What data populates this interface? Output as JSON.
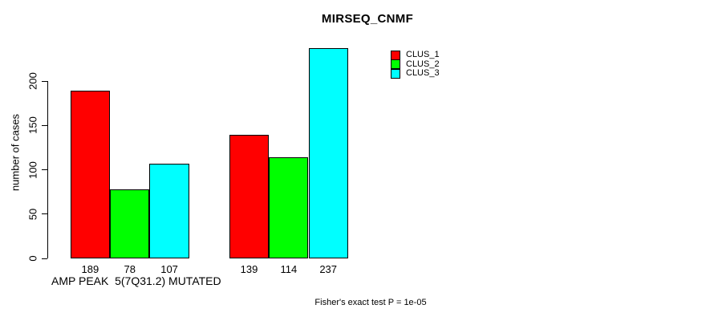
{
  "title": "MIRSEQ_CNMF",
  "chart_data": {
    "type": "bar",
    "title": "MIRSEQ_CNMF",
    "ylabel": "number of cases",
    "xlabel": "AMP PEAK  5(7Q31.2) MUTATED",
    "footnote": "Fisher's exact test P = 1e-05",
    "ylim": [
      0,
      240
    ],
    "yticks": [
      0,
      50,
      100,
      150,
      200
    ],
    "grid": false,
    "legend_position": "top-right",
    "bar_value_labels_shown": true,
    "groups": [
      "AMP PEAK  5(7Q31.2) MUTATED",
      ""
    ],
    "series": [
      {
        "name": "CLUS_1",
        "color": "#FF0000",
        "values": [
          189,
          139
        ]
      },
      {
        "name": "CLUS_2",
        "color": "#00FF00",
        "values": [
          78,
          114
        ]
      },
      {
        "name": "CLUS_3",
        "color": "#00FFFF",
        "values": [
          107,
          237
        ]
      }
    ],
    "colors": {
      "background": "#FFFFFF",
      "axis": "#000000",
      "text": "#000000"
    }
  }
}
